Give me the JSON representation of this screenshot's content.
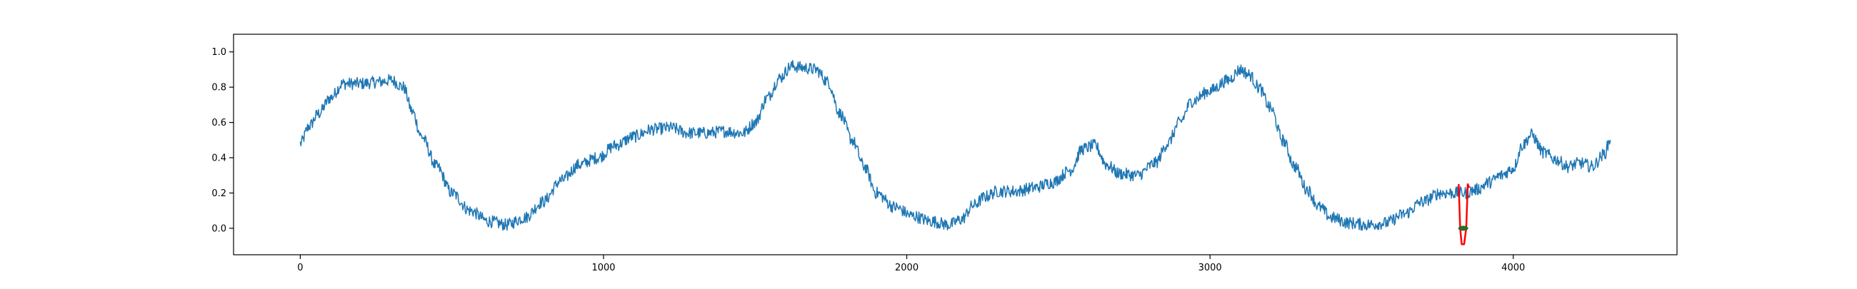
{
  "chart_data": {
    "type": "line",
    "title": "",
    "xlabel": "",
    "ylabel": "",
    "xlim": [
      -220,
      4540
    ],
    "ylim": [
      -0.15,
      1.1
    ],
    "grid": false,
    "x_ticks": [
      0,
      1000,
      2000,
      3000,
      4000
    ],
    "x_tick_labels": [
      "0",
      "1000",
      "2000",
      "3000",
      "4000"
    ],
    "y_ticks": [
      0.0,
      0.2,
      0.4,
      0.6,
      0.8,
      1.0
    ],
    "y_tick_labels": [
      "0.0",
      "0.2",
      "0.4",
      "0.6",
      "0.8",
      "1.0"
    ],
    "series": [
      {
        "color": "#1f77b4",
        "noise_amplitude": 0.035,
        "x": [
          0,
          30,
          60,
          100,
          140,
          200,
          260,
          300,
          340,
          370,
          400,
          450,
          500,
          560,
          620,
          680,
          740,
          800,
          860,
          920,
          980,
          1040,
          1100,
          1160,
          1220,
          1280,
          1340,
          1400,
          1460,
          1500,
          1540,
          1580,
          1620,
          1660,
          1700,
          1740,
          1780,
          1820,
          1860,
          1900,
          1960,
          2020,
          2080,
          2140,
          2180,
          2220,
          2260,
          2300,
          2360,
          2420,
          2480,
          2540,
          2580,
          2620,
          2660,
          2700,
          2760,
          2820,
          2860,
          2900,
          2940,
          3000,
          3060,
          3100,
          3130,
          3160,
          3200,
          3240,
          3280,
          3320,
          3360,
          3400,
          3460,
          3520,
          3580,
          3640,
          3700,
          3760,
          3800,
          3840,
          3880,
          3920,
          3960,
          4000,
          4030,
          4060,
          4100,
          4140,
          4180,
          4220,
          4260,
          4300,
          4320
        ],
        "y": [
          0.48,
          0.58,
          0.65,
          0.74,
          0.82,
          0.82,
          0.83,
          0.84,
          0.8,
          0.66,
          0.52,
          0.35,
          0.2,
          0.1,
          0.04,
          0.02,
          0.06,
          0.15,
          0.27,
          0.36,
          0.4,
          0.47,
          0.52,
          0.56,
          0.57,
          0.54,
          0.54,
          0.55,
          0.54,
          0.6,
          0.74,
          0.85,
          0.92,
          0.91,
          0.9,
          0.83,
          0.65,
          0.5,
          0.35,
          0.2,
          0.12,
          0.07,
          0.04,
          0.02,
          0.05,
          0.13,
          0.18,
          0.21,
          0.21,
          0.23,
          0.26,
          0.33,
          0.45,
          0.47,
          0.36,
          0.31,
          0.3,
          0.37,
          0.48,
          0.6,
          0.72,
          0.78,
          0.84,
          0.9,
          0.87,
          0.8,
          0.68,
          0.5,
          0.35,
          0.22,
          0.12,
          0.06,
          0.03,
          0.02,
          0.03,
          0.08,
          0.15,
          0.2,
          0.2,
          0.2,
          0.22,
          0.26,
          0.3,
          0.34,
          0.47,
          0.53,
          0.43,
          0.39,
          0.35,
          0.37,
          0.35,
          0.42,
          0.5
        ]
      },
      {
        "color": "#ff0000",
        "x": [
          3820,
          3825,
          3830,
          3838,
          3845,
          3850,
          3855
        ],
        "y": [
          0.25,
          0.0,
          -0.09,
          -0.09,
          0.0,
          0.25,
          0.23
        ]
      }
    ],
    "annotations": [
      {
        "type": "marker",
        "x": 3835,
        "y": 0.0,
        "color": "#2a6b2a"
      }
    ]
  }
}
